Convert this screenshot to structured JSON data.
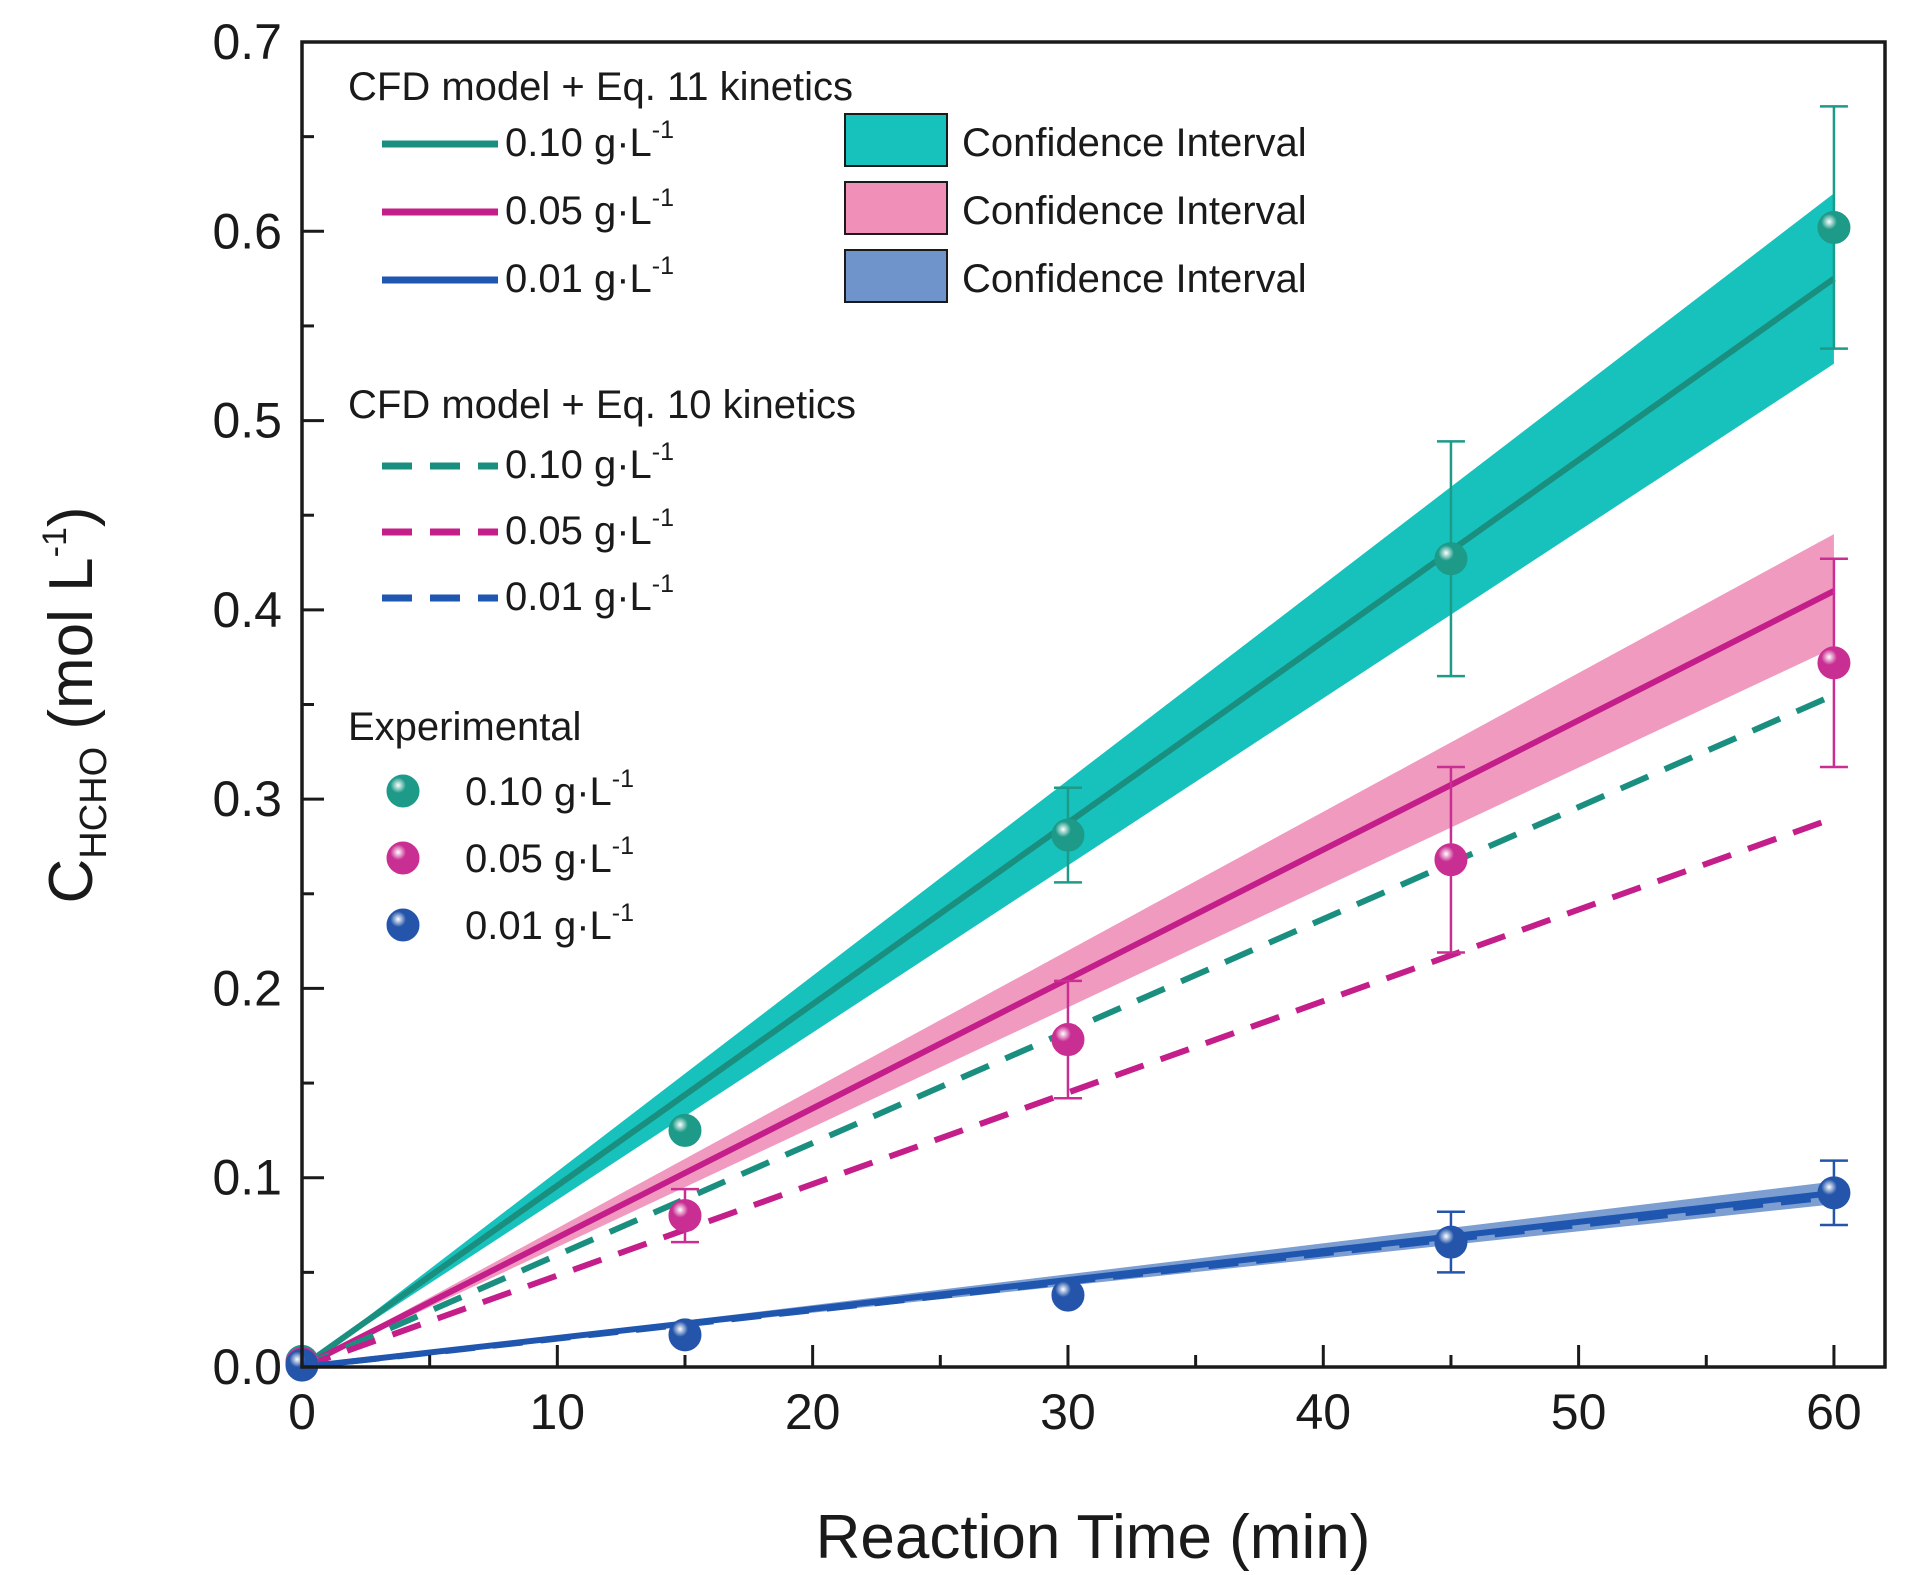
{
  "chart_data": {
    "type": "line",
    "xlabel": "Reaction Time (min)",
    "ylabel": {
      "main": "C",
      "subscript": "HCHO",
      "unit_open": " (mol L",
      "unit_sup": "-1",
      "unit_close": ")"
    },
    "xlim": [
      0,
      62
    ],
    "ylim": [
      0,
      0.7
    ],
    "xticks": [
      0,
      10,
      20,
      30,
      40,
      50,
      60
    ],
    "xtick_labels": [
      "0",
      "10",
      "20",
      "30",
      "40",
      "50",
      "60"
    ],
    "yticks": [
      0,
      0.1,
      0.2,
      0.3,
      0.4,
      0.5,
      0.6,
      0.7
    ],
    "ytick_labels": [
      "0.0",
      "0.1",
      "0.2",
      "0.3",
      "0.4",
      "0.5",
      "0.6",
      "0.7"
    ],
    "colors": {
      "c010": "#1a8f80",
      "c005": "#c41e8a",
      "c001": "#1f56b0",
      "band010": "#17c2bd",
      "band005": "#f08fb8",
      "band001": "#6f94cc",
      "marker010": "#1d9a88",
      "marker005": "#c92e92",
      "marker001": "#2455aa"
    },
    "legend": {
      "group1_title": "CFD model + Eq. 11 kinetics",
      "group2_title": "CFD model + Eq. 10 kinetics",
      "group3_title": "Experimental",
      "conc_labels": [
        "0.10 g·L",
        "0.05 g·L",
        "0.01 g·L"
      ],
      "unit_sup": "-1",
      "band_label": "Confidence Interval"
    },
    "series": [
      {
        "name": "0.10 g·L-1 (Eq. 11)",
        "style": "solid",
        "color_key": "c010",
        "x": [
          0,
          60
        ],
        "y": [
          0,
          0.575
        ]
      },
      {
        "name": "0.05 g·L-1 (Eq. 11)",
        "style": "solid",
        "color_key": "c005",
        "x": [
          0,
          60
        ],
        "y": [
          0,
          0.41
        ]
      },
      {
        "name": "0.01 g·L-1 (Eq. 11)",
        "style": "solid",
        "color_key": "c001",
        "x": [
          0,
          60
        ],
        "y": [
          0,
          0.092
        ]
      },
      {
        "name": "0.10 g·L-1 (Eq. 10)",
        "style": "dashed",
        "color_key": "c010",
        "x": [
          0,
          60
        ],
        "y": [
          0,
          0.355
        ]
      },
      {
        "name": "0.05 g·L-1 (Eq. 10)",
        "style": "dashed",
        "color_key": "c005",
        "x": [
          0,
          60
        ],
        "y": [
          0,
          0.29
        ]
      },
      {
        "name": "0.01 g·L-1 (Eq. 10)",
        "style": "dashed",
        "color_key": "c001",
        "x": [
          0,
          60
        ],
        "y": [
          0,
          0.09
        ]
      }
    ],
    "bands": [
      {
        "name": "Confidence Interval 0.10 g·L-1",
        "color_key": "band010",
        "x": [
          0,
          60
        ],
        "lower": [
          0,
          0.53
        ],
        "upper": [
          0,
          0.62
        ]
      },
      {
        "name": "Confidence Interval 0.05 g·L-1",
        "color_key": "band005",
        "x": [
          0,
          60
        ],
        "lower": [
          0,
          0.38
        ],
        "upper": [
          0,
          0.44
        ]
      },
      {
        "name": "Confidence Interval 0.01 g·L-1",
        "color_key": "band001",
        "x": [
          0,
          60
        ],
        "lower": [
          0,
          0.086
        ],
        "upper": [
          0,
          0.098
        ]
      }
    ],
    "experimental": [
      {
        "name": "0.10 g·L-1",
        "color_key": "marker010",
        "x": [
          0,
          15,
          30,
          45,
          60
        ],
        "y": [
          0.003,
          0.125,
          0.281,
          0.427,
          0.602
        ],
        "err": [
          0,
          0,
          0.025,
          0.062,
          0.064
        ]
      },
      {
        "name": "0.05 g·L-1",
        "color_key": "marker005",
        "x": [
          0,
          15,
          30,
          45,
          60
        ],
        "y": [
          0.002,
          0.08,
          0.173,
          0.268,
          0.372
        ],
        "err": [
          0,
          0.014,
          0.031,
          0.049,
          0.055
        ]
      },
      {
        "name": "0.01 g·L-1",
        "color_key": "marker001",
        "x": [
          0,
          15,
          30,
          45,
          60
        ],
        "y": [
          0.001,
          0.017,
          0.038,
          0.066,
          0.092
        ],
        "err": [
          0,
          0,
          0,
          0.016,
          0.017
        ]
      }
    ]
  }
}
